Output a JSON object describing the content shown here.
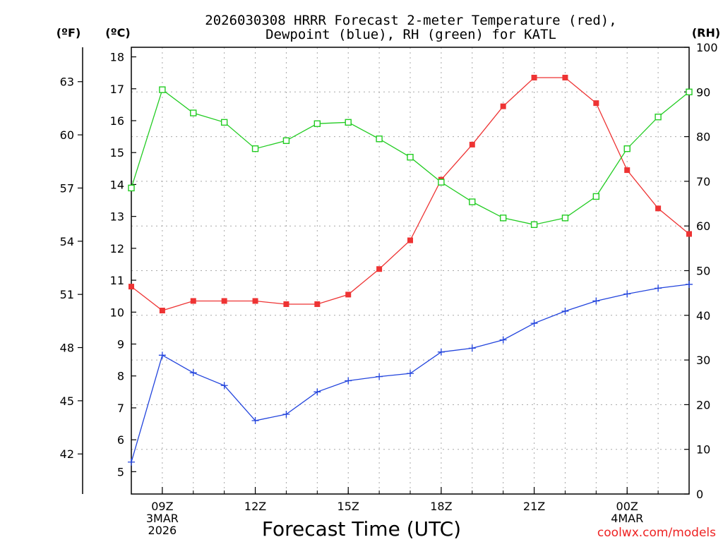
{
  "chart_data": {
    "type": "line",
    "title_line1": "2026030308 HRRR Forecast 2-meter Temperature (red),",
    "title_line2": "Dewpoint (blue), RH (green) for KATL",
    "xlabel": "Forecast Time (UTC)",
    "credit": "coolwx.com/models",
    "units": {
      "fahrenheit": "(ºF)",
      "celsius": "(ºC)",
      "rh": "(RH)"
    },
    "x": [
      8,
      9,
      10,
      11,
      12,
      13,
      14,
      15,
      16,
      17,
      18,
      19,
      20,
      21,
      22,
      23,
      24,
      25,
      26
    ],
    "xlim": [
      8,
      26
    ],
    "x_ticks": [
      {
        "x": 9,
        "lines": [
          "09Z",
          "3MAR",
          "2026"
        ]
      },
      {
        "x": 12,
        "lines": [
          "12Z"
        ]
      },
      {
        "x": 15,
        "lines": [
          "15Z"
        ]
      },
      {
        "x": 18,
        "lines": [
          "18Z"
        ]
      },
      {
        "x": 21,
        "lines": [
          "21Z"
        ]
      },
      {
        "x": 24,
        "lines": [
          "00Z",
          "4MAR"
        ]
      }
    ],
    "ylim_c": [
      4.3,
      18.3
    ],
    "y_ticks_c": [
      "5",
      "6",
      "7",
      "8",
      "9",
      "10",
      "11",
      "12",
      "13",
      "14",
      "15",
      "16",
      "17",
      "18"
    ],
    "y_ticks_f": [
      "42",
      "45",
      "48",
      "51",
      "54",
      "57",
      "60",
      "63"
    ],
    "ylim_rh": [
      0,
      100
    ],
    "y_ticks_rh": [
      "0",
      "10",
      "20",
      "30",
      "40",
      "50",
      "60",
      "70",
      "80",
      "90",
      "100"
    ],
    "series": [
      {
        "name": "Temperature",
        "axis": "c",
        "color": "#ee3333",
        "marker": "filled-square",
        "values": [
          10.8,
          10.05,
          10.35,
          10.35,
          10.35,
          10.25,
          10.25,
          10.55,
          11.35,
          12.25,
          14.15,
          15.25,
          16.45,
          17.35,
          17.35,
          16.55,
          14.45,
          13.25,
          12.45
        ]
      },
      {
        "name": "Dewpoint",
        "axis": "c",
        "color": "#2244dd",
        "marker": "plus",
        "values": [
          5.3,
          8.65,
          8.1,
          7.7,
          6.6,
          6.8,
          7.5,
          7.85,
          7.98,
          8.08,
          8.75,
          8.87,
          9.13,
          9.65,
          10.03,
          10.35,
          10.57,
          10.75,
          10.87
        ]
      },
      {
        "name": "RH",
        "axis": "rh",
        "color": "#22cc22",
        "marker": "open-square",
        "values": [
          68.5,
          90.5,
          85.3,
          83.2,
          77.3,
          79.1,
          82.9,
          83.2,
          79.5,
          75.4,
          69.8,
          65.4,
          61.8,
          60.3,
          61.8,
          66.6,
          77.3,
          84.4,
          90.0
        ]
      }
    ]
  }
}
